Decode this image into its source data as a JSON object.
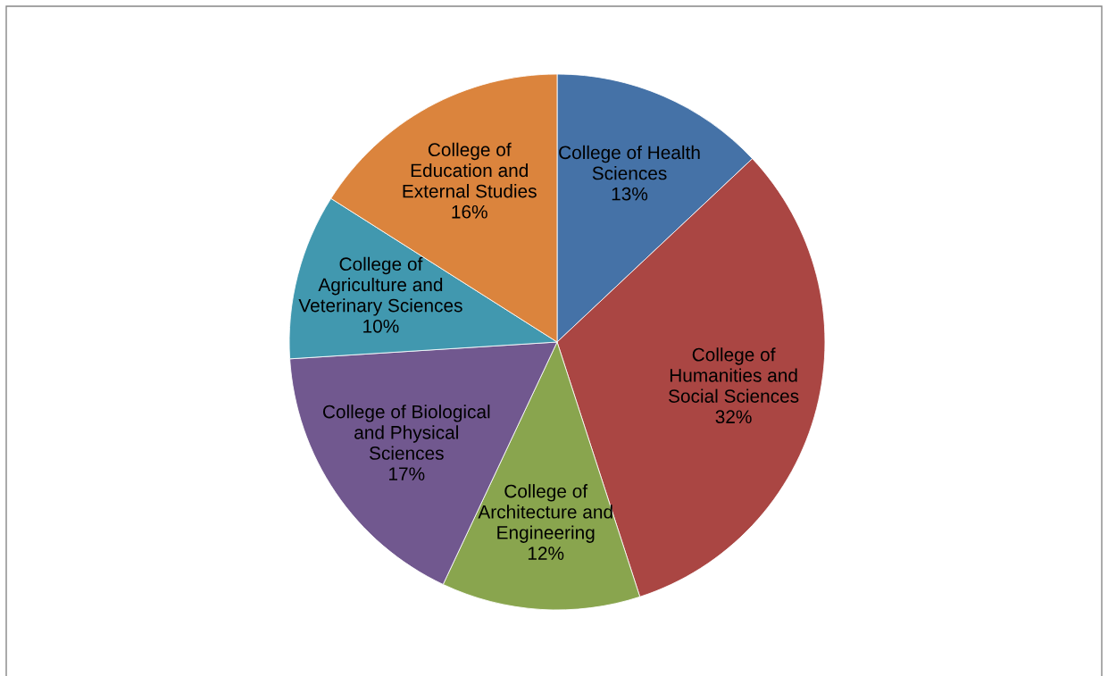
{
  "chart_data": {
    "type": "pie",
    "categories": [
      "College of Health\nSciences",
      "College of\nHumanities and\nSocial Sciences",
      "College of\nArchitecture and\nEngineering",
      "College of Biological\nand Physical\nSciences",
      "College of\nAgriculture and\nVeterinary Sciences",
      "College of\nEducation and\nExternal Studies"
    ],
    "values": [
      13,
      32,
      12,
      17,
      10,
      16
    ],
    "value_labels": [
      "13%",
      "32%",
      "12%",
      "17%",
      "10%",
      "16%"
    ],
    "colors": [
      "#4572a7",
      "#aa4643",
      "#89a54e",
      "#71588f",
      "#4198af",
      "#db843d"
    ],
    "legend": false
  }
}
